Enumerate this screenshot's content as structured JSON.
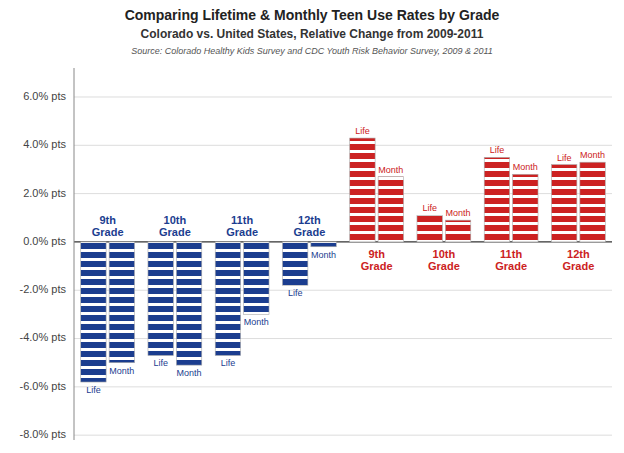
{
  "chart_data": {
    "type": "bar",
    "title": "Comparing Lifetime & Monthly Teen Use Rates by Grade",
    "subtitle": "Colorado vs. United States, Relative Change from 2009-2011",
    "annotations": [
      "Source: Colorado Healthy Kids Survey and CDC Youth Risk Behavior Survey, 2009 & 2011"
    ],
    "categories": [
      "9th\nGrade",
      "10th\nGrade",
      "11th\nGrade",
      "12th\nGrade",
      "9th\nGrade",
      "10th\nGrade",
      "11th\nGrade",
      "12th\nGrade"
    ],
    "series": [
      {
        "name": "Life",
        "values": [
          -5.8,
          -4.7,
          -4.7,
          -1.8,
          4.3,
          1.1,
          3.5,
          3.2
        ],
        "colors": [
          "#1B3D8F",
          "#1B3D8F",
          "#1B3D8F",
          "#1B3D8F",
          "#CC2222",
          "#CC2222",
          "#CC2222",
          "#CC2222"
        ]
      },
      {
        "name": "Month",
        "values": [
          -5.0,
          -5.1,
          -3.0,
          -0.2,
          2.7,
          0.9,
          2.8,
          3.3
        ],
        "colors": [
          "#1B3D8F",
          "#1B3D8F",
          "#1B3D8F",
          "#1B3D8F",
          "#CC2222",
          "#CC2222",
          "#CC2222",
          "#CC2222"
        ]
      }
    ],
    "ylim": [
      -8.2,
      7.2
    ],
    "yticks": [
      {
        "value": -8.0,
        "label": "-8.0% pts"
      },
      {
        "value": -6.0,
        "label": "-6.0% pts"
      },
      {
        "value": -4.0,
        "label": "-4.0% pts"
      },
      {
        "value": -2.0,
        "label": "-2.0% pts"
      },
      {
        "value": 0.0,
        "label": "0.0% pts"
      },
      {
        "value": 2.0,
        "label": "2.0% pts"
      },
      {
        "value": 4.0,
        "label": "4.0% pts"
      },
      {
        "value": 6.0,
        "label": "6.0% pts"
      }
    ],
    "grid": true
  }
}
